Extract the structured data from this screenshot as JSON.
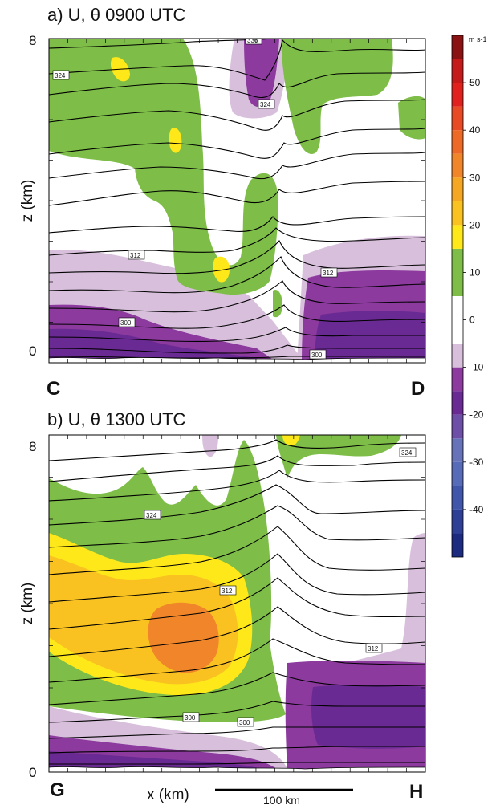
{
  "chart_data": [
    {
      "type": "heatmap",
      "title": "a) U, θ  0900 UTC",
      "ylabel": "z (km)",
      "ylim": [
        0,
        8
      ],
      "y_ticks": [
        "0",
        "8"
      ],
      "left_label": "C",
      "right_label": "D",
      "contour_labels": [
        "336",
        "324",
        "324",
        "312",
        "312",
        "300",
        "300"
      ],
      "shaded_field": "U (m s-1)",
      "contour_field": "θ (K)"
    },
    {
      "type": "heatmap",
      "title": "b) U, θ  1300 UTC",
      "ylabel": "z (km)",
      "xlabel": "x (km)",
      "ylim": [
        0,
        8
      ],
      "y_ticks": [
        "0",
        "8"
      ],
      "left_label": "G",
      "right_label": "H",
      "contour_labels": [
        "324",
        "324",
        "312",
        "312",
        "300",
        "300"
      ],
      "scale_bar_label": "100 km",
      "shaded_field": "U (m s-1)",
      "contour_field": "θ (K)"
    }
  ],
  "colorbar": {
    "unit": "m s-1",
    "tick_labels": [
      "50",
      "40",
      "30",
      "20",
      "10",
      "0",
      "-10",
      "-20",
      "-30",
      "-40"
    ],
    "tick_values": [
      50,
      40,
      30,
      20,
      10,
      0,
      -10,
      -20,
      -30,
      -40
    ],
    "range": [
      -50,
      60
    ],
    "colors": [
      {
        "low": -50,
        "high": -45,
        "color": "#1c2a80"
      },
      {
        "low": -45,
        "high": -40,
        "color": "#2e3f96"
      },
      {
        "low": -40,
        "high": -35,
        "color": "#3f56ab"
      },
      {
        "low": -35,
        "high": -30,
        "color": "#566cb8"
      },
      {
        "low": -30,
        "high": -25,
        "color": "#6773b8"
      },
      {
        "low": -25,
        "high": -20,
        "color": "#6e4fa8"
      },
      {
        "low": -20,
        "high": -15,
        "color": "#6a2a94"
      },
      {
        "low": -15,
        "high": -10,
        "color": "#8c3a9e"
      },
      {
        "low": -10,
        "high": -5,
        "color": "#d8c0dc"
      },
      {
        "low": -5,
        "high": 5,
        "color": "#ffffff"
      },
      {
        "low": 5,
        "high": 15,
        "color": "#7dbd48"
      },
      {
        "low": 15,
        "high": 20,
        "color": "#ffe81a"
      },
      {
        "low": 20,
        "high": 25,
        "color": "#f9c221"
      },
      {
        "low": 25,
        "high": 30,
        "color": "#f5a623"
      },
      {
        "low": 30,
        "high": 35,
        "color": "#f0852a"
      },
      {
        "low": 35,
        "high": 40,
        "color": "#ec6a26"
      },
      {
        "low": 40,
        "high": 45,
        "color": "#e84a25"
      },
      {
        "low": 45,
        "high": 50,
        "color": "#e0211d"
      },
      {
        "low": 50,
        "high": 55,
        "color": "#c41a1a"
      },
      {
        "low": 55,
        "high": 60,
        "color": "#8a1212"
      }
    ]
  },
  "colors": {
    "green": "#7dbd48",
    "light_purple": "#d8c0dc",
    "purple": "#8c3a9e",
    "dark_purple": "#6a2a94",
    "yellow": "#ffe81a",
    "gold": "#f9c221",
    "orange": "#f0852a"
  }
}
